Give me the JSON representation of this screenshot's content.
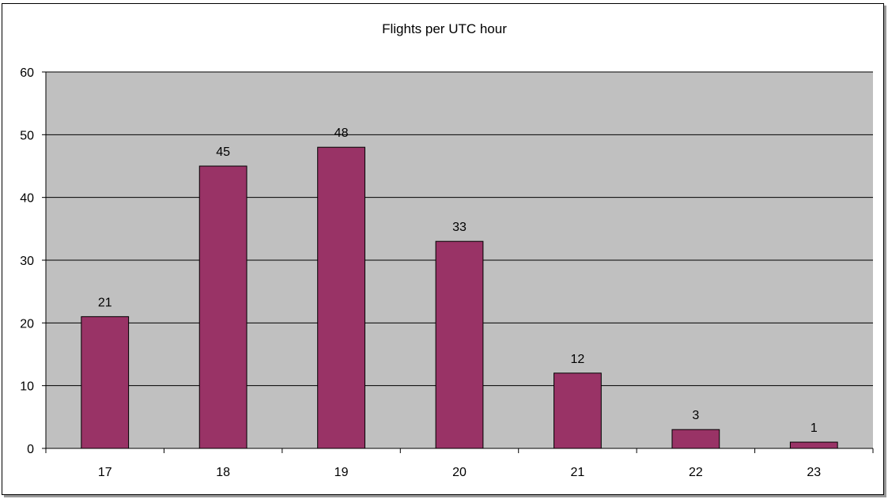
{
  "chart_data": {
    "type": "bar",
    "title": "Flights per UTC hour",
    "xlabel": "",
    "ylabel": "",
    "categories": [
      "17",
      "18",
      "19",
      "20",
      "21",
      "22",
      "23"
    ],
    "values": [
      21,
      45,
      48,
      33,
      12,
      3,
      1
    ],
    "ylim": [
      0,
      60
    ],
    "yticks": [
      "0",
      "10",
      "20",
      "30",
      "40",
      "50",
      "60"
    ],
    "grid": true,
    "legend": "none",
    "data_labels": true,
    "colors": {
      "bar": "#993366",
      "plot_background": "#c0c0c0",
      "gridline": "#000000"
    }
  }
}
